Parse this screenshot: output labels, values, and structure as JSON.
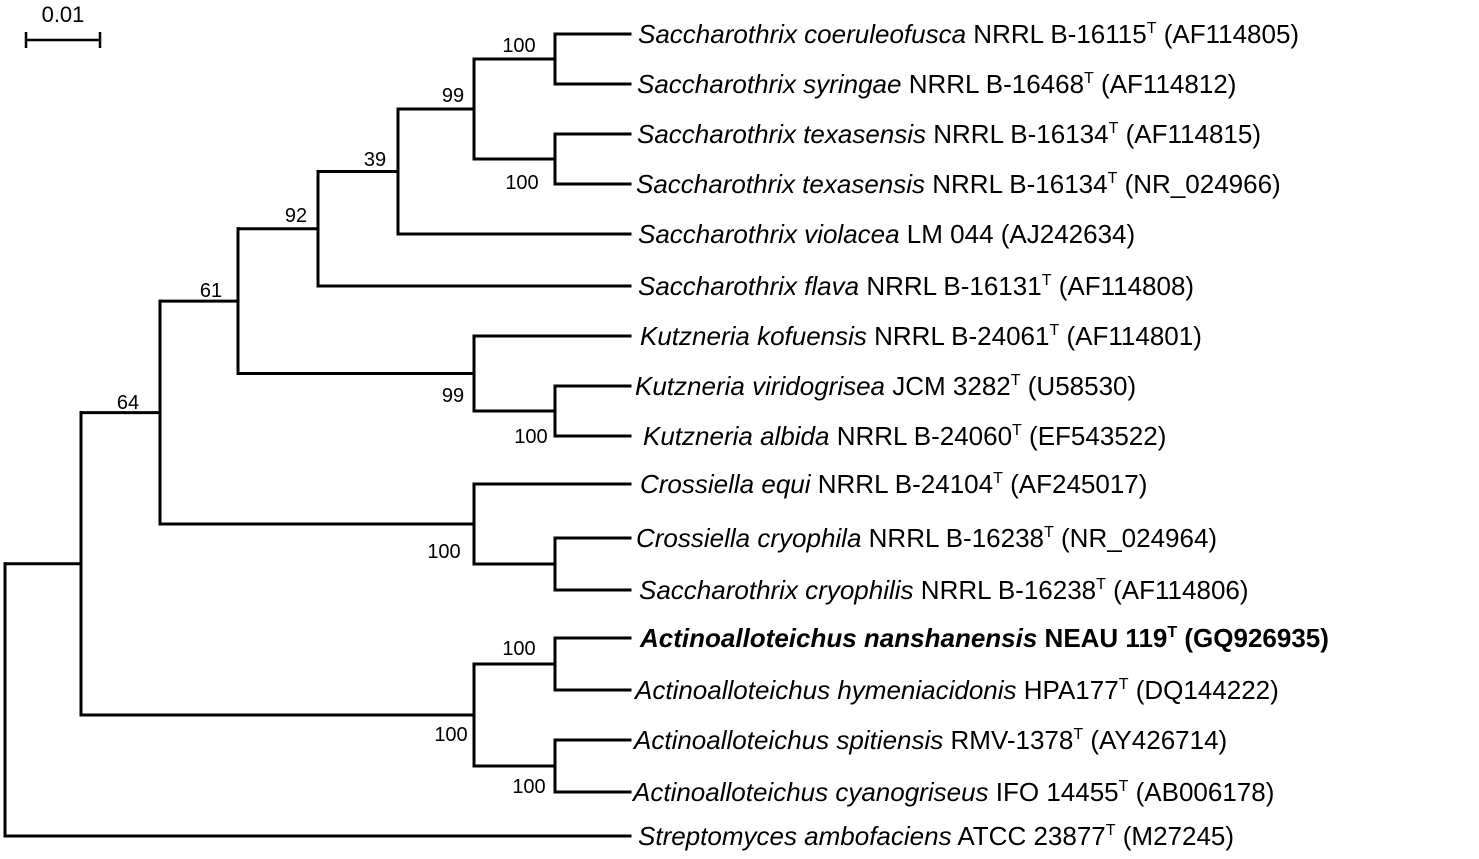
{
  "scale_bar": {
    "label": "0.01"
  },
  "taxa": [
    {
      "species": "Saccharothrix coeruleofusca",
      "strain": "NRRL B-16115",
      "type_strain": true,
      "accession": "(AF114805)",
      "bold": false
    },
    {
      "species": "Saccharothrix syringae",
      "strain": "NRRL B-16468",
      "type_strain": true,
      "accession": "(AF114812)",
      "bold": false
    },
    {
      "species": "Saccharothrix texasensis",
      "strain": "NRRL B-16134",
      "type_strain": true,
      "accession": "(AF114815)",
      "bold": false
    },
    {
      "species": "Saccharothrix texasensis",
      "strain": "NRRL B-16134",
      "type_strain": true,
      "accession": "(NR_024966)",
      "bold": false
    },
    {
      "species": "Saccharothrix violacea",
      "strain": "LM 044",
      "type_strain": false,
      "accession": "(AJ242634)",
      "bold": false
    },
    {
      "species": "Saccharothrix flava",
      "strain": "NRRL B-16131",
      "type_strain": true,
      "accession": "(AF114808)",
      "bold": false
    },
    {
      "species": "Kutzneria kofuensis",
      "strain": "NRRL B-24061",
      "type_strain": true,
      "accession": "(AF114801)",
      "bold": false
    },
    {
      "species": "Kutzneria viridogrisea",
      "strain": "JCM 3282",
      "type_strain": true,
      "accession": "(U58530)",
      "bold": false
    },
    {
      "species": "Kutzneria albida",
      "strain": "NRRL B-24060",
      "type_strain": true,
      "accession": "(EF543522)",
      "bold": false
    },
    {
      "species": "Crossiella equi",
      "strain": "NRRL B-24104",
      "type_strain": true,
      "accession": "(AF245017)",
      "bold": false
    },
    {
      "species": "Crossiella cryophila",
      "strain": "NRRL B-16238",
      "type_strain": true,
      "accession": "(NR_024964)",
      "bold": false
    },
    {
      "species": "Saccharothrix cryophilis",
      "strain": "NRRL B-16238",
      "type_strain": true,
      "accession": "(AF114806)",
      "bold": false
    },
    {
      "species": "Actinoalloteichus nanshanensis",
      "strain": "NEAU 119",
      "type_strain": true,
      "accession": "(GQ926935)",
      "bold": true
    },
    {
      "species": "Actinoalloteichus hymeniacidonis",
      "strain": "HPA177",
      "type_strain": true,
      "accession": "(DQ144222)",
      "bold": false
    },
    {
      "species": "Actinoalloteichus spitiensis",
      "strain": "RMV-1378",
      "type_strain": true,
      "accession": "(AY426714)",
      "bold": false
    },
    {
      "species": "Actinoalloteichus cyanogriseus",
      "strain": "IFO 14455",
      "type_strain": true,
      "accession": "(AB006178)",
      "bold": false
    },
    {
      "species": "Streptomyces ambofaciens",
      "strain": "ATCC 23877",
      "type_strain": true,
      "accession": "(M27245)",
      "bold": false
    }
  ],
  "type_marker": "T",
  "bootstrap_values": [
    "100",
    "99",
    "100",
    "39",
    "92",
    "61",
    "99",
    "100",
    "64",
    "100",
    "100",
    "100",
    "100"
  ]
}
